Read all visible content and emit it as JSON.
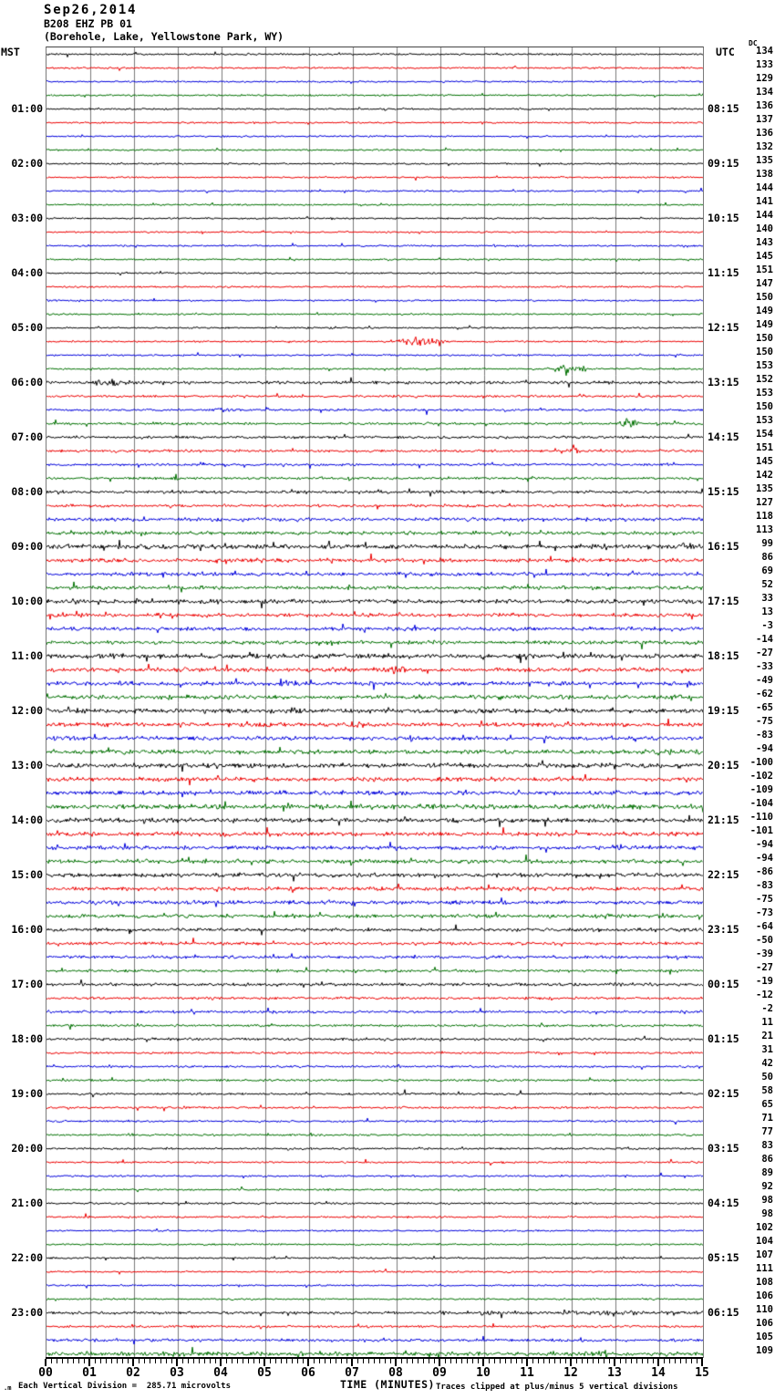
{
  "header": {
    "date": "Sep26,2014",
    "station": "B208 EHZ PB 01",
    "location": "(Borehole, Lake, Yellowstone Park, WY)"
  },
  "axes": {
    "left_label": "MST",
    "right_label": "UTC",
    "dc_label": "DC",
    "x_title": "TIME (MINUTES)",
    "x_ticks": [
      "00",
      "01",
      "02",
      "03",
      "04",
      "05",
      "06",
      "07",
      "08",
      "09",
      "10",
      "11",
      "12",
      "13",
      "14",
      "15"
    ],
    "minutes_per_line": 15,
    "minor_ticks_per_minute": 8
  },
  "footer": {
    "scale_note": "Each Vertical Division =  285.71 microvolts",
    "clip_note": "Traces clipped at plus/minus 5 vertical divisions",
    "corner_mark": ".m"
  },
  "chart_data": {
    "type": "line",
    "title": "B208 EHZ PB 01 webicorder, Sep26,2014 (Borehole, Lake, Yellowstone Park, WY)",
    "xlabel": "TIME (MINUTES)",
    "x_range": [
      0,
      15
    ],
    "grid": true,
    "colors": {
      "cycle": [
        "#000000",
        "#ee0000",
        "#0000dd",
        "#007000"
      ],
      "grid": "#7a7a7a"
    },
    "rows": [
      {
        "dc": 134,
        "amp": 1.0
      },
      {
        "dc": 133,
        "amp": 1.0
      },
      {
        "dc": 129,
        "amp": 0.9
      },
      {
        "dc": 134,
        "amp": 0.9
      },
      {
        "mst": "01:00",
        "utc": "08:15",
        "dc": 136,
        "amp": 0.9
      },
      {
        "dc": 137,
        "amp": 0.9
      },
      {
        "dc": 136,
        "amp": 0.9
      },
      {
        "dc": 132,
        "amp": 0.9
      },
      {
        "mst": "02:00",
        "utc": "09:15",
        "dc": 135,
        "amp": 0.9
      },
      {
        "dc": 138,
        "amp": 0.9
      },
      {
        "dc": 144,
        "amp": 0.9
      },
      {
        "dc": 141,
        "amp": 0.9
      },
      {
        "mst": "03:00",
        "utc": "10:15",
        "dc": 144,
        "amp": 0.9
      },
      {
        "dc": 140,
        "amp": 0.9
      },
      {
        "dc": 143,
        "amp": 0.9
      },
      {
        "dc": 145,
        "amp": 0.9
      },
      {
        "mst": "04:00",
        "utc": "11:15",
        "dc": 151,
        "amp": 0.9
      },
      {
        "dc": 147,
        "amp": 0.9
      },
      {
        "dc": 150,
        "amp": 0.9
      },
      {
        "dc": 149,
        "amp": 0.9
      },
      {
        "mst": "05:00",
        "utc": "12:15",
        "dc": 149,
        "amp": 0.9
      },
      {
        "dc": 150,
        "amp": 0.9,
        "ev": [
          [
            7.8,
            9.3,
            5.0
          ]
        ]
      },
      {
        "dc": 150,
        "amp": 0.9
      },
      {
        "dc": 153,
        "amp": 1.0,
        "ev": [
          [
            11.3,
            12.7,
            3.0
          ]
        ]
      },
      {
        "mst": "06:00",
        "utc": "13:15",
        "dc": 152,
        "amp": 1.6,
        "ev": [
          [
            0.7,
            2.3,
            2.5
          ]
        ]
      },
      {
        "dc": 153,
        "amp": 1.3
      },
      {
        "dc": 150,
        "amp": 1.3,
        "ev": [
          [
            3.7,
            4.3,
            2.0
          ]
        ]
      },
      {
        "dc": 153,
        "amp": 1.4,
        "ev": [
          [
            13.0,
            13.6,
            6.5
          ]
        ]
      },
      {
        "mst": "07:00",
        "utc": "14:15",
        "dc": 154,
        "amp": 1.4
      },
      {
        "dc": 151,
        "amp": 1.4,
        "ev": [
          [
            11.8,
            12.3,
            2.2
          ]
        ]
      },
      {
        "dc": 145,
        "amp": 1.3
      },
      {
        "dc": 142,
        "amp": 1.4
      },
      {
        "mst": "08:00",
        "utc": "15:15",
        "dc": 135,
        "amp": 1.6
      },
      {
        "dc": 127,
        "amp": 1.5
      },
      {
        "dc": 118,
        "amp": 2.0
      },
      {
        "dc": 113,
        "amp": 1.8
      },
      {
        "mst": "09:00",
        "utc": "16:15",
        "dc": 99,
        "amp": 2.4,
        "ev": [
          [
            14.2,
            15.0,
            2.5
          ]
        ]
      },
      {
        "dc": 86,
        "amp": 2.0
      },
      {
        "dc": 69,
        "amp": 1.9
      },
      {
        "dc": 52,
        "amp": 1.9
      },
      {
        "mst": "10:00",
        "utc": "17:15",
        "dc": 33,
        "amp": 2.2
      },
      {
        "dc": 13,
        "amp": 2.0
      },
      {
        "dc": -3,
        "amp": 2.0
      },
      {
        "dc": -14,
        "amp": 2.0
      },
      {
        "mst": "11:00",
        "utc": "18:15",
        "dc": -27,
        "amp": 2.4
      },
      {
        "dc": -33,
        "amp": 2.2,
        "ev": [
          [
            7.3,
            8.6,
            2.8
          ]
        ]
      },
      {
        "dc": -49,
        "amp": 2.2,
        "ev": [
          [
            5.2,
            6.0,
            2.8
          ]
        ]
      },
      {
        "dc": -62,
        "amp": 2.2
      },
      {
        "mst": "12:00",
        "utc": "19:15",
        "dc": -65,
        "amp": 2.4,
        "ev": [
          [
            5.5,
            5.9,
            3.5
          ]
        ]
      },
      {
        "dc": -75,
        "amp": 2.3,
        "ev": [
          [
            6.8,
            7.4,
            2.0
          ]
        ]
      },
      {
        "dc": -83,
        "amp": 2.2
      },
      {
        "dc": -94,
        "amp": 2.3
      },
      {
        "mst": "13:00",
        "utc": "20:15",
        "dc": -100,
        "amp": 2.4
      },
      {
        "dc": -102,
        "amp": 2.2
      },
      {
        "dc": -109,
        "amp": 2.2
      },
      {
        "dc": -104,
        "amp": 2.5
      },
      {
        "mst": "14:00",
        "utc": "21:15",
        "dc": -110,
        "amp": 2.3
      },
      {
        "dc": -101,
        "amp": 2.2
      },
      {
        "dc": -94,
        "amp": 2.1,
        "ev": [
          [
            12.8,
            13.4,
            2.0
          ]
        ]
      },
      {
        "dc": -94,
        "amp": 2.1
      },
      {
        "mst": "15:00",
        "utc": "22:15",
        "dc": -86,
        "amp": 2.2
      },
      {
        "dc": -83,
        "amp": 2.0
      },
      {
        "dc": -75,
        "amp": 2.0
      },
      {
        "dc": -73,
        "amp": 2.0,
        "ev": [
          [
            12.7,
            13.1,
            2.0
          ]
        ]
      },
      {
        "mst": "16:00",
        "utc": "23:15",
        "dc": -64,
        "amp": 1.8
      },
      {
        "dc": -50,
        "amp": 1.6
      },
      {
        "dc": -39,
        "amp": 1.6
      },
      {
        "dc": -27,
        "amp": 1.5
      },
      {
        "mst": "17:00",
        "utc": "00:15",
        "dc": -19,
        "amp": 1.6
      },
      {
        "dc": -12,
        "amp": 1.4
      },
      {
        "dc": -2,
        "amp": 1.4
      },
      {
        "dc": 11,
        "amp": 1.3
      },
      {
        "mst": "18:00",
        "utc": "01:15",
        "dc": 21,
        "amp": 1.4
      },
      {
        "dc": 31,
        "amp": 1.2
      },
      {
        "dc": 42,
        "amp": 1.2
      },
      {
        "dc": 50,
        "amp": 1.2
      },
      {
        "mst": "19:00",
        "utc": "02:15",
        "dc": 58,
        "amp": 1.2
      },
      {
        "dc": 65,
        "amp": 1.1
      },
      {
        "dc": 71,
        "amp": 1.1
      },
      {
        "dc": 77,
        "amp": 1.1
      },
      {
        "mst": "20:00",
        "utc": "03:15",
        "dc": 83,
        "amp": 1.1
      },
      {
        "dc": 86,
        "amp": 1.0
      },
      {
        "dc": 89,
        "amp": 1.0
      },
      {
        "dc": 92,
        "amp": 1.0
      },
      {
        "mst": "21:00",
        "utc": "04:15",
        "dc": 98,
        "amp": 1.1
      },
      {
        "dc": 98,
        "amp": 1.0
      },
      {
        "dc": 102,
        "amp": 0.9
      },
      {
        "dc": 104,
        "amp": 0.9
      },
      {
        "mst": "22:00",
        "utc": "05:15",
        "dc": 107,
        "amp": 1.0
      },
      {
        "dc": 111,
        "amp": 0.9
      },
      {
        "dc": 108,
        "amp": 0.9
      },
      {
        "dc": 106,
        "amp": 0.9
      },
      {
        "mst": "23:00",
        "utc": "06:15",
        "dc": 110,
        "amp": 1.6,
        "ev": [
          [
            8.0,
            15.0,
            1.0
          ]
        ]
      },
      {
        "dc": 106,
        "amp": 1.3
      },
      {
        "dc": 105,
        "amp": 1.5
      },
      {
        "dc": 109,
        "amp": 2.2,
        "ev": [
          [
            12.5,
            13.0,
            2.5
          ]
        ]
      }
    ]
  }
}
